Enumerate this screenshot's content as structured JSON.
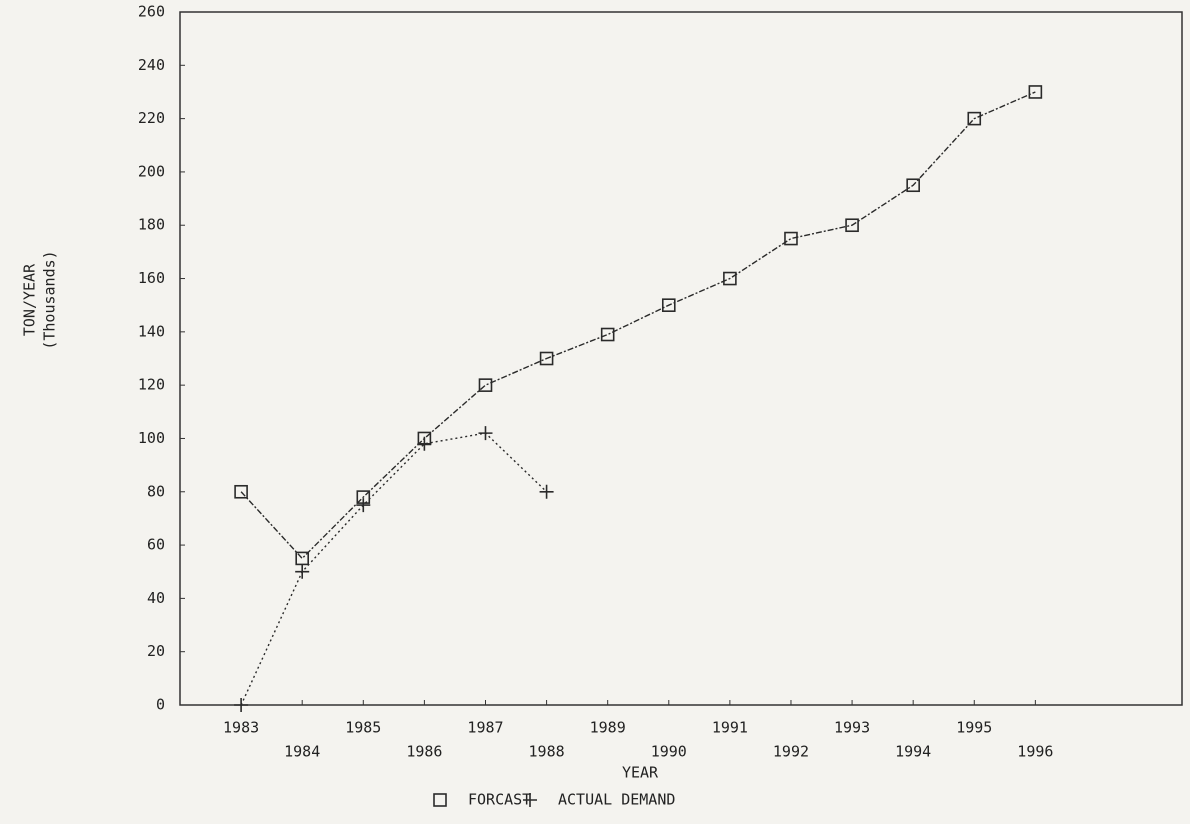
{
  "chart_data": {
    "type": "line",
    "x_label": "YEAR",
    "y_label": "TON/YEAR",
    "y_label_sub": "(Thousands)",
    "x": [
      1983,
      1984,
      1985,
      1986,
      1987,
      1988,
      1989,
      1990,
      1991,
      1992,
      1993,
      1994,
      1995,
      1996
    ],
    "xlim": [
      1982,
      1998.4
    ],
    "xticks": [
      1983,
      1984,
      1985,
      1986,
      1987,
      1988,
      1989,
      1990,
      1991,
      1992,
      1993,
      1994,
      1995,
      1996
    ],
    "ylim": [
      0,
      260
    ],
    "yticks": [
      0,
      20,
      40,
      60,
      80,
      100,
      120,
      140,
      160,
      180,
      200,
      220,
      240,
      260
    ],
    "grid": false,
    "series": [
      {
        "name": "FORCAST",
        "color": "#2a2a2a",
        "marker": "square",
        "values": [
          80,
          55,
          78,
          100,
          120,
          130,
          139,
          150,
          160,
          175,
          180,
          195,
          220,
          230
        ]
      },
      {
        "name": "ACTUAL DEMAND",
        "color": "#2a2a2a",
        "marker": "plus",
        "values": [
          0,
          50,
          75,
          98,
          102,
          80,
          null,
          null,
          null,
          null,
          null,
          null,
          null,
          null
        ]
      }
    ]
  }
}
